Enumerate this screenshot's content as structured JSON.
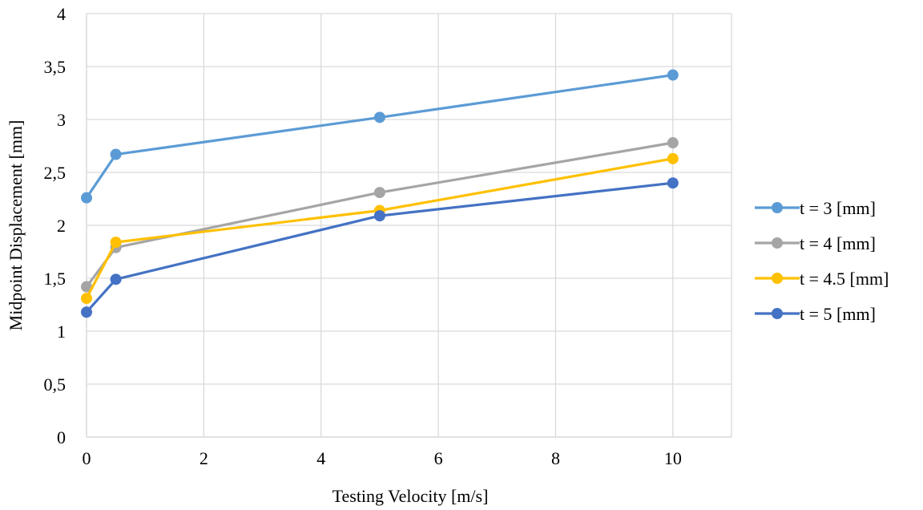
{
  "chart_data": {
    "type": "line",
    "xlabel": "Testing Velocity [m/s]",
    "ylabel": "Midpoint Displacement [mm]",
    "xlim": [
      0,
      11
    ],
    "ylim": [
      0,
      4
    ],
    "xticks": [
      0,
      2,
      4,
      6,
      8,
      10
    ],
    "xtick_labels": [
      "0",
      "2",
      "4",
      "6",
      "8",
      "10"
    ],
    "yticks": [
      0,
      0.5,
      1,
      1.5,
      2,
      2.5,
      3,
      3.5,
      4
    ],
    "ytick_labels": [
      "0",
      "0,5",
      "1",
      "1,5",
      "2",
      "2,5",
      "3",
      "3,5",
      "4"
    ],
    "grid": true,
    "legend_position": "right",
    "x": [
      0,
      0.5,
      5,
      10
    ],
    "series": [
      {
        "name": "t = 3 [mm]",
        "color": "#5B9BD5",
        "values": [
          2.26,
          2.67,
          3.02,
          3.42
        ]
      },
      {
        "name": "t = 4 [mm]",
        "color": "#A5A5A5",
        "values": [
          1.42,
          1.79,
          2.31,
          2.78
        ]
      },
      {
        "name": "t = 4.5 [mm]",
        "color": "#FFC000",
        "values": [
          1.31,
          1.84,
          2.14,
          2.63
        ]
      },
      {
        "name": "t = 5 [mm]",
        "color": "#4472C4",
        "values": [
          1.18,
          1.49,
          2.09,
          2.4
        ]
      }
    ]
  }
}
